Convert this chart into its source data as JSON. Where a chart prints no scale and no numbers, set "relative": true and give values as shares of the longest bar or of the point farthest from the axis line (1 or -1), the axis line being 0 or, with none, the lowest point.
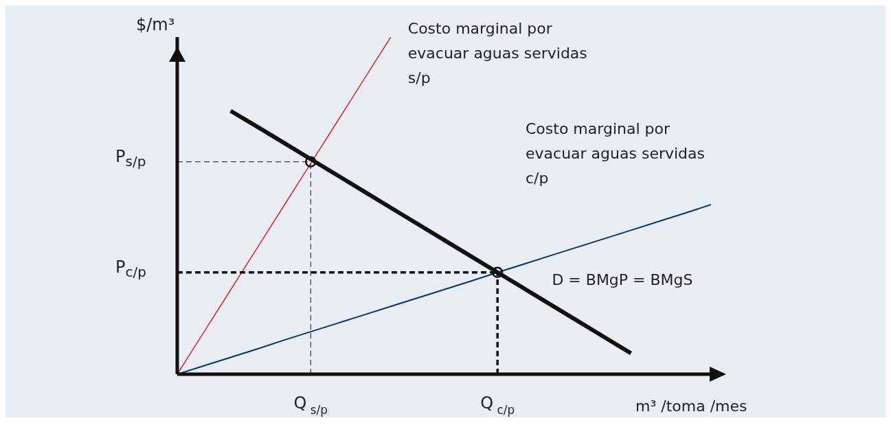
{
  "chart_data": {
    "type": "line",
    "relative": true,
    "xlabel": "m³ /toma /mes",
    "ylabel": "$/m³",
    "marker": "none",
    "categories": [
      null,
      null,
      null,
      null,
      null,
      "Q$_{s/p}$",
      null,
      null,
      null,
      null,
      null,
      null,
      "Q$_{c/p}$",
      null,
      null,
      null,
      null,
      null,
      null,
      null,
      null
    ],
    "series": [
      {
        "name": "Costo marginal por evacuar aguas servidas s/p",
        "color": "#e2231a",
        "values": [
          0,
          0.125,
          0.25,
          0.375,
          0.5,
          0.625,
          0.75,
          0.875,
          1,
          null,
          null,
          null,
          null,
          null,
          null,
          null,
          null,
          null,
          null,
          null,
          null
        ]
      },
      {
        "name": "Costo marginal por evacuar aguas servidas c/p",
        "color": "#003478",
        "values": [
          0,
          0.025,
          0.05,
          0.075,
          0.101,
          0.126,
          0.151,
          0.176,
          0.201,
          0.226,
          0.251,
          0.276,
          0.302,
          0.327,
          0.352,
          0.377,
          0.402,
          0.427,
          0.452,
          0.477,
          0.503
        ]
      },
      {
        "name": "D = BMgP = BMgS",
        "color": "#111111",
        "values": [
          null,
          null,
          0.781,
          0.734,
          0.686,
          0.638,
          0.59,
          0.542,
          0.494,
          0.446,
          0.398,
          0.35,
          0.302,
          0.254,
          0.206,
          0.158,
          0.11,
          0.062,
          null,
          null,
          null
        ]
      },
      {
        "type": "scatter",
        "marker": "circle",
        "color": "#111111",
        "values": [
          null,
          null,
          null,
          null,
          null,
          0.63,
          null,
          null,
          null,
          null,
          null,
          null,
          0.302,
          null,
          null,
          null,
          null,
          null,
          null,
          null,
          null
        ]
      }
    ],
    "ref_lines": [
      {
        "axis": "y",
        "value": 0.63,
        "color": "#111111",
        "line_style": "dashed"
      },
      {
        "axis": "y",
        "value": 0.302,
        "color": "#111111",
        "line_style": "dashed"
      }
    ],
    "annotations": [
      "P$_{s/p}$",
      "P$_{c/p}$"
    ]
  }
}
